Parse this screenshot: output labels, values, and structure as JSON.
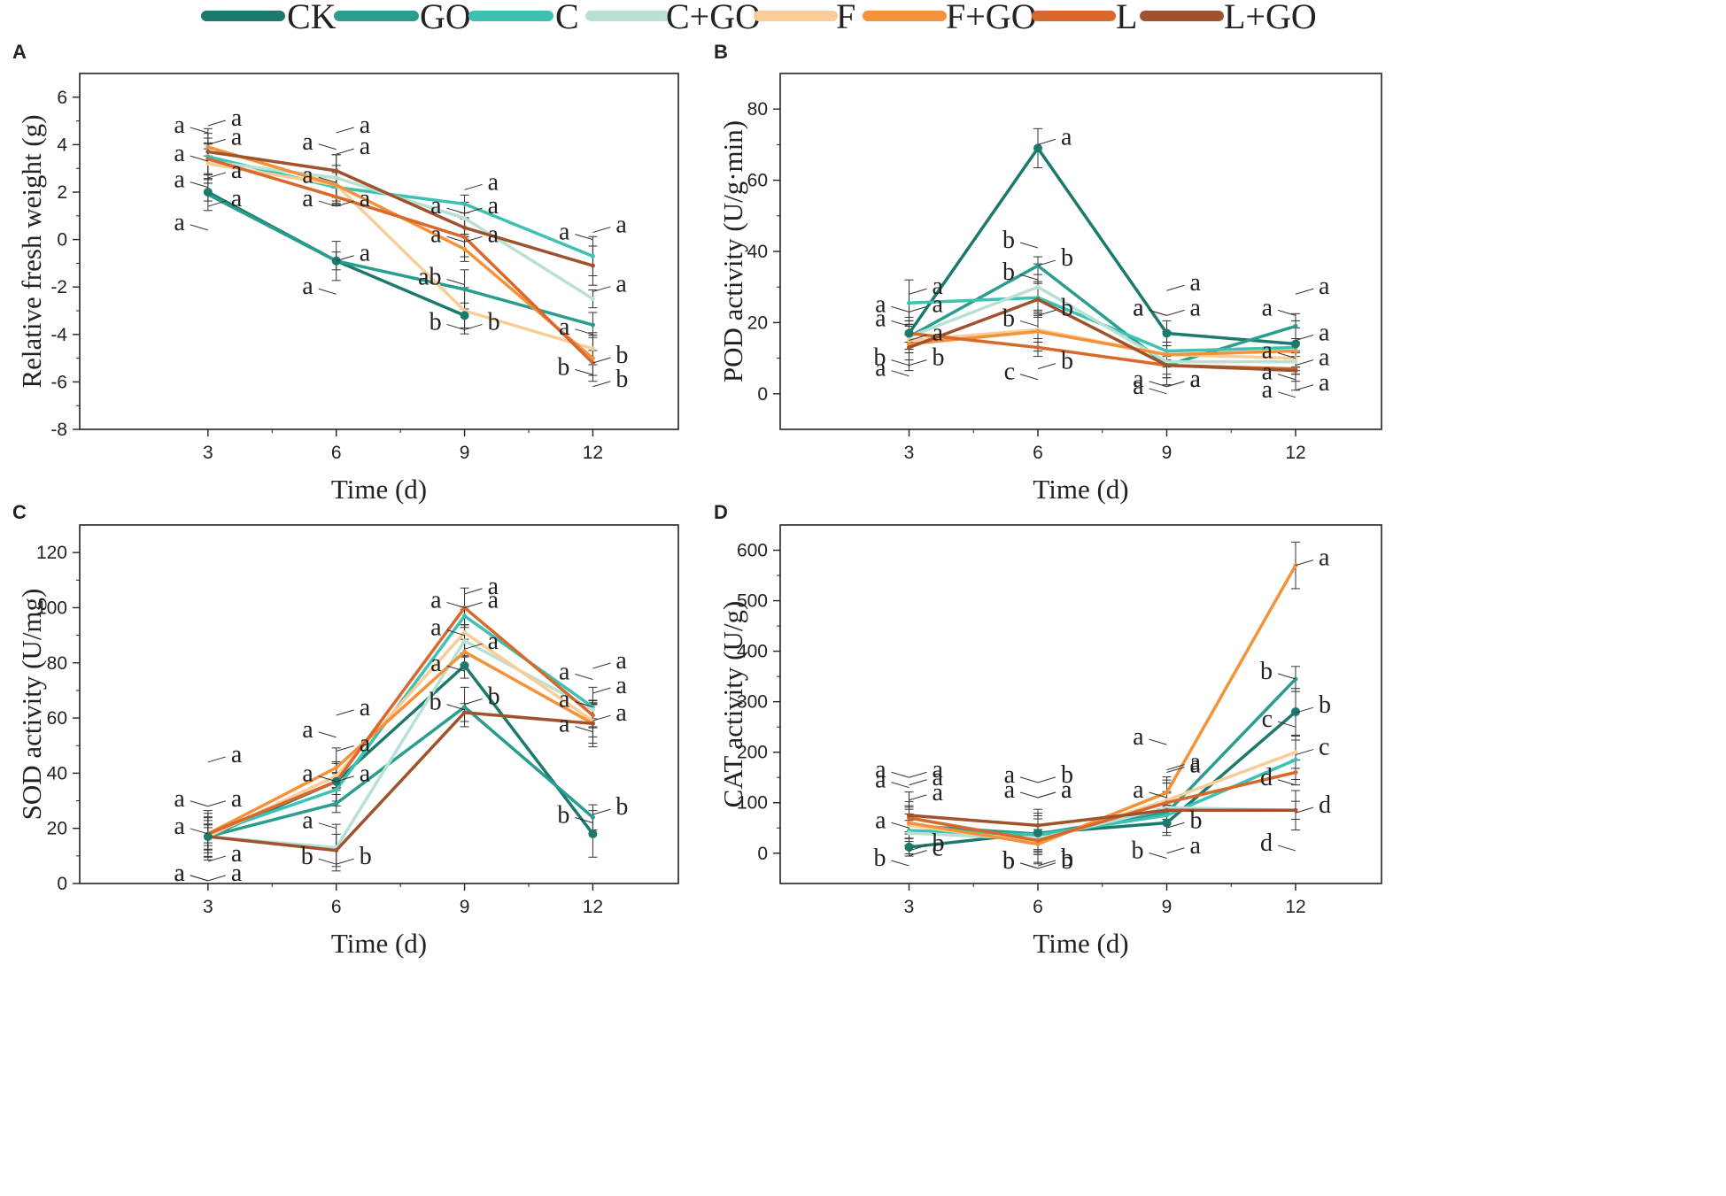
{
  "legend": [
    {
      "name": "CK",
      "color": "#1b7a6c"
    },
    {
      "name": "GO",
      "color": "#2a9d8f"
    },
    {
      "name": "C",
      "color": "#3cc1b2"
    },
    {
      "name": "C+GO",
      "color": "#b8e0d3"
    },
    {
      "name": "F",
      "color": "#f8cd98"
    },
    {
      "name": "F+GO",
      "color": "#f4923a"
    },
    {
      "name": "L",
      "color": "#d8692e"
    },
    {
      "name": "L+GO",
      "color": "#a0522d"
    }
  ],
  "chart_data": [
    {
      "panel": "A",
      "type": "line",
      "xlabel": "Time (d)",
      "ylabel": "Relative fresh weight (g)",
      "x": [
        3,
        6,
        9,
        12
      ],
      "xlim": [
        0,
        14
      ],
      "ylim": [
        -8,
        7
      ],
      "xticks": [
        3,
        6,
        9,
        12
      ],
      "yticks": [
        -8,
        -6,
        -4,
        -2,
        0,
        2,
        4,
        6
      ],
      "series": [
        {
          "name": "CK",
          "values": [
            2.0,
            -0.9,
            -3.2,
            null
          ]
        },
        {
          "name": "GO",
          "values": [
            1.9,
            -0.9,
            -2.1,
            -3.6
          ]
        },
        {
          "name": "C",
          "values": [
            3.5,
            2.2,
            1.5,
            -0.7
          ]
        },
        {
          "name": "C+GO",
          "values": [
            3.3,
            2.6,
            0.9,
            -2.5
          ]
        },
        {
          "name": "F",
          "values": [
            3.2,
            2.3,
            -3.0,
            -4.6
          ]
        },
        {
          "name": "F+GO",
          "values": [
            3.9,
            2.3,
            -0.4,
            -5.0
          ]
        },
        {
          "name": "L",
          "values": [
            3.4,
            1.8,
            0.1,
            -5.2
          ]
        },
        {
          "name": "L+GO",
          "values": [
            3.7,
            2.9,
            0.5,
            -1.1
          ]
        }
      ],
      "annotations": [
        {
          "text": "a",
          "x": 3,
          "y": 4.8
        },
        {
          "text": "a",
          "x": 3,
          "y": 4.5
        },
        {
          "text": "a",
          "x": 3,
          "y": 4.0
        },
        {
          "text": "a",
          "x": 3,
          "y": 3.3
        },
        {
          "text": "a",
          "x": 3,
          "y": 2.6
        },
        {
          "text": "a",
          "x": 3,
          "y": 2.2
        },
        {
          "text": "a",
          "x": 3,
          "y": 1.4
        },
        {
          "text": "a",
          "x": 3,
          "y": 0.4
        },
        {
          "text": "a",
          "x": 6,
          "y": 4.5
        },
        {
          "text": "a",
          "x": 6,
          "y": 3.8
        },
        {
          "text": "a",
          "x": 6,
          "y": 3.6
        },
        {
          "text": "a",
          "x": 6,
          "y": 2.4
        },
        {
          "text": "a",
          "x": 6,
          "y": 1.4
        },
        {
          "text": "a",
          "x": 6,
          "y": 1.4
        },
        {
          "text": "a",
          "x": 6,
          "y": -0.9
        },
        {
          "text": "a",
          "x": 6,
          "y": -2.3
        },
        {
          "text": "a",
          "x": 9,
          "y": 2.1
        },
        {
          "text": "a",
          "x": 9,
          "y": 1.1
        },
        {
          "text": "a",
          "x": 9,
          "y": 1.1
        },
        {
          "text": "a",
          "x": 9,
          "y": -0.1
        },
        {
          "text": "a",
          "x": 9,
          "y": -0.1
        },
        {
          "text": "ab",
          "x": 9,
          "y": -1.9
        },
        {
          "text": "b",
          "x": 9,
          "y": -3.8
        },
        {
          "text": "b",
          "x": 9,
          "y": -3.8
        },
        {
          "text": "a",
          "x": 12,
          "y": 0.3
        },
        {
          "text": "a",
          "x": 12,
          "y": 0.0
        },
        {
          "text": "a",
          "x": 12,
          "y": -2.2
        },
        {
          "text": "a",
          "x": 12,
          "y": -4.0
        },
        {
          "text": "b",
          "x": 12,
          "y": -5.2
        },
        {
          "text": "b",
          "x": 12,
          "y": -5.7
        },
        {
          "text": "b",
          "x": 12,
          "y": -6.2
        }
      ]
    },
    {
      "panel": "B",
      "type": "line",
      "xlabel": "Time (d)",
      "ylabel": "POD activity (U/g·min)",
      "x": [
        3,
        6,
        9,
        12
      ],
      "xlim": [
        0,
        14
      ],
      "ylim": [
        -10,
        90
      ],
      "xticks": [
        3,
        6,
        9,
        12
      ],
      "yticks": [
        0,
        20,
        40,
        60,
        80
      ],
      "series": [
        {
          "name": "CK",
          "values": [
            17,
            69,
            17,
            14
          ]
        },
        {
          "name": "GO",
          "values": [
            16,
            36,
            8,
            19
          ]
        },
        {
          "name": "C",
          "values": [
            25.5,
            27,
            12,
            13
          ]
        },
        {
          "name": "C+GO",
          "values": [
            16,
            30,
            9,
            9
          ]
        },
        {
          "name": "F",
          "values": [
            15,
            18,
            11,
            10
          ]
        },
        {
          "name": "F+GO",
          "values": [
            14,
            17.5,
            11,
            12
          ]
        },
        {
          "name": "L",
          "values": [
            17,
            13,
            8,
            7
          ]
        },
        {
          "name": "L+GO",
          "values": [
            13,
            26.5,
            8,
            6.5
          ]
        }
      ],
      "annotations": [
        {
          "text": "a",
          "x": 6,
          "y": 70
        },
        {
          "text": "b",
          "x": 6,
          "y": 41
        },
        {
          "text": "b",
          "x": 6,
          "y": 36
        },
        {
          "text": "b",
          "x": 6,
          "y": 32
        },
        {
          "text": "b",
          "x": 6,
          "y": 22
        },
        {
          "text": "b",
          "x": 6,
          "y": 19
        },
        {
          "text": "b",
          "x": 6,
          "y": 7
        },
        {
          "text": "c",
          "x": 6,
          "y": 4
        },
        {
          "text": "a",
          "x": 3,
          "y": 28
        },
        {
          "text": "a",
          "x": 3,
          "y": 23
        },
        {
          "text": "a",
          "x": 3,
          "y": 23
        },
        {
          "text": "a",
          "x": 3,
          "y": 19
        },
        {
          "text": "a",
          "x": 3,
          "y": 15
        },
        {
          "text": "b",
          "x": 3,
          "y": 8
        },
        {
          "text": "b",
          "x": 3,
          "y": 8
        },
        {
          "text": "a",
          "x": 3,
          "y": 5
        },
        {
          "text": "a",
          "x": 9,
          "y": 29
        },
        {
          "text": "a",
          "x": 9,
          "y": 22
        },
        {
          "text": "a",
          "x": 9,
          "y": 22
        },
        {
          "text": "a",
          "x": 9,
          "y": 22
        },
        {
          "text": "a",
          "x": 9,
          "y": 2
        },
        {
          "text": "a",
          "x": 9,
          "y": 2
        },
        {
          "text": "a",
          "x": 9,
          "y": 2
        },
        {
          "text": "a",
          "x": 9,
          "y": 0
        },
        {
          "text": "a",
          "x": 12,
          "y": 28
        },
        {
          "text": "a",
          "x": 12,
          "y": 22
        },
        {
          "text": "a",
          "x": 12,
          "y": 15
        },
        {
          "text": "a",
          "x": 12,
          "y": 10
        },
        {
          "text": "a",
          "x": 12,
          "y": 8
        },
        {
          "text": "a",
          "x": 12,
          "y": 4
        },
        {
          "text": "a",
          "x": 12,
          "y": 1
        },
        {
          "text": "a",
          "x": 12,
          "y": -1
        }
      ]
    },
    {
      "panel": "C",
      "type": "line",
      "xlabel": "Time (d)",
      "ylabel": "SOD activity (U/mg)",
      "x": [
        3,
        6,
        9,
        12
      ],
      "xlim": [
        0,
        14
      ],
      "ylim": [
        0,
        130
      ],
      "xticks": [
        3,
        6,
        9,
        12
      ],
      "yticks": [
        0,
        20,
        40,
        60,
        80,
        100,
        120
      ],
      "series": [
        {
          "name": "CK",
          "values": [
            17,
            37,
            79,
            18
          ]
        },
        {
          "name": "GO",
          "values": [
            17,
            29,
            64,
            24
          ]
        },
        {
          "name": "C",
          "values": [
            18,
            34,
            97,
            64
          ]
        },
        {
          "name": "C+GO",
          "values": [
            17,
            13,
            88,
            63
          ]
        },
        {
          "name": "F",
          "values": [
            17,
            39,
            91,
            59
          ]
        },
        {
          "name": "F+GO",
          "values": [
            18,
            42,
            84,
            58
          ]
        },
        {
          "name": "L",
          "values": [
            18,
            37,
            100,
            61
          ]
        },
        {
          "name": "L+GO",
          "values": [
            17,
            12,
            62,
            58
          ]
        }
      ],
      "annotations": [
        {
          "text": "a",
          "x": 3,
          "y": 44
        },
        {
          "text": "a",
          "x": 3,
          "y": 28
        },
        {
          "text": "a",
          "x": 3,
          "y": 28
        },
        {
          "text": "a",
          "x": 3,
          "y": 18
        },
        {
          "text": "a",
          "x": 3,
          "y": 8
        },
        {
          "text": "a",
          "x": 3,
          "y": 1
        },
        {
          "text": "a",
          "x": 3,
          "y": 1
        },
        {
          "text": "a",
          "x": 3,
          "y": 1
        },
        {
          "text": "a",
          "x": 6,
          "y": 61
        },
        {
          "text": "a",
          "x": 6,
          "y": 53
        },
        {
          "text": "a",
          "x": 6,
          "y": 48
        },
        {
          "text": "a",
          "x": 6,
          "y": 37
        },
        {
          "text": "a",
          "x": 6,
          "y": 37
        },
        {
          "text": "a",
          "x": 6,
          "y": 20
        },
        {
          "text": "b",
          "x": 6,
          "y": 7
        },
        {
          "text": "b",
          "x": 6,
          "y": 7
        },
        {
          "text": "a",
          "x": 9,
          "y": 105
        },
        {
          "text": "a",
          "x": 9,
          "y": 100
        },
        {
          "text": "a",
          "x": 9,
          "y": 100
        },
        {
          "text": "a",
          "x": 9,
          "y": 90
        },
        {
          "text": "a",
          "x": 9,
          "y": 85
        },
        {
          "text": "a",
          "x": 9,
          "y": 77
        },
        {
          "text": "b",
          "x": 9,
          "y": 65
        },
        {
          "text": "b",
          "x": 9,
          "y": 63
        },
        {
          "text": "a",
          "x": 12,
          "y": 78
        },
        {
          "text": "a",
          "x": 12,
          "y": 74
        },
        {
          "text": "a",
          "x": 12,
          "y": 69
        },
        {
          "text": "a",
          "x": 12,
          "y": 64
        },
        {
          "text": "a",
          "x": 12,
          "y": 59
        },
        {
          "text": "a",
          "x": 12,
          "y": 55
        },
        {
          "text": "b",
          "x": 12,
          "y": 25
        },
        {
          "text": "b",
          "x": 12,
          "y": 22
        }
      ]
    },
    {
      "panel": "D",
      "type": "line",
      "xlabel": "Time (d)",
      "ylabel": "CAT activity (U/g)",
      "x": [
        3,
        6,
        9,
        12
      ],
      "xlim": [
        0,
        14
      ],
      "ylim": [
        -60,
        650
      ],
      "xticks": [
        3,
        6,
        9,
        12
      ],
      "yticks": [
        0,
        100,
        200,
        300,
        400,
        500,
        600
      ],
      "series": [
        {
          "name": "CK",
          "values": [
            12,
            40,
            60,
            280
          ]
        },
        {
          "name": "GO",
          "values": [
            55,
            38,
            80,
            345
          ]
        },
        {
          "name": "C",
          "values": [
            45,
            36,
            75,
            185
          ]
        },
        {
          "name": "C+GO",
          "values": [
            40,
            28,
            90,
            85
          ]
        },
        {
          "name": "F",
          "values": [
            55,
            22,
            105,
            200
          ]
        },
        {
          "name": "F+GO",
          "values": [
            60,
            18,
            120,
            570
          ]
        },
        {
          "name": "L",
          "values": [
            70,
            25,
            100,
            160
          ]
        },
        {
          "name": "L+GO",
          "values": [
            75,
            55,
            85,
            85
          ]
        }
      ],
      "annotations": [
        {
          "text": "a",
          "x": 3,
          "y": 150
        },
        {
          "text": "a",
          "x": 3,
          "y": 150
        },
        {
          "text": "a",
          "x": 3,
          "y": 135
        },
        {
          "text": "a",
          "x": 3,
          "y": 130
        },
        {
          "text": "a",
          "x": 3,
          "y": 105
        },
        {
          "text": "a",
          "x": 3,
          "y": 50
        },
        {
          "text": "b",
          "x": 3,
          "y": 5
        },
        {
          "text": "b",
          "x": 3,
          "y": -25
        },
        {
          "text": "c",
          "x": 3,
          "y": -5
        },
        {
          "text": "a",
          "x": 6,
          "y": 110
        },
        {
          "text": "a",
          "x": 6,
          "y": 140
        },
        {
          "text": "a",
          "x": 6,
          "y": 110
        },
        {
          "text": "a",
          "x": 6,
          "y": 110
        },
        {
          "text": "b",
          "x": 6,
          "y": 140
        },
        {
          "text": "b",
          "x": 6,
          "y": -30
        },
        {
          "text": "b",
          "x": 6,
          "y": -30
        },
        {
          "text": "b",
          "x": 6,
          "y": -30
        },
        {
          "text": "b",
          "x": 6,
          "y": -25
        },
        {
          "text": "a",
          "x": 9,
          "y": 160
        },
        {
          "text": "a",
          "x": 9,
          "y": 215
        },
        {
          "text": "a",
          "x": 9,
          "y": 165
        },
        {
          "text": "a",
          "x": 9,
          "y": 110
        },
        {
          "text": "a",
          "x": 9,
          "y": 0
        },
        {
          "text": "b",
          "x": 9,
          "y": -10
        },
        {
          "text": "b",
          "x": 9,
          "y": 50
        },
        {
          "text": "a",
          "x": 12,
          "y": 570
        },
        {
          "text": "b",
          "x": 12,
          "y": 345
        },
        {
          "text": "b",
          "x": 12,
          "y": 278
        },
        {
          "text": "c",
          "x": 12,
          "y": 250
        },
        {
          "text": "c",
          "x": 12,
          "y": 195
        },
        {
          "text": "d",
          "x": 12,
          "y": 135
        },
        {
          "text": "d",
          "x": 12,
          "y": 80
        },
        {
          "text": "d",
          "x": 12,
          "y": 5
        }
      ]
    }
  ]
}
